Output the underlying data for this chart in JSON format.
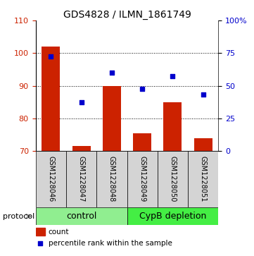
{
  "title": "GDS4828 / ILMN_1861749",
  "samples": [
    "GSM1228046",
    "GSM1228047",
    "GSM1228048",
    "GSM1228049",
    "GSM1228050",
    "GSM1228051"
  ],
  "bar_values": [
    102.0,
    71.5,
    90.0,
    75.5,
    85.0,
    74.0
  ],
  "percentile_values": [
    72.5,
    37.5,
    60.0,
    47.5,
    57.5,
    43.5
  ],
  "bar_color": "#cc2200",
  "dot_color": "#0000cc",
  "ylim_left": [
    70,
    110
  ],
  "ylim_right": [
    0,
    100
  ],
  "yticks_left": [
    70,
    80,
    90,
    100,
    110
  ],
  "yticks_right": [
    0,
    25,
    50,
    75,
    100
  ],
  "yticklabels_right": [
    "0",
    "25",
    "50",
    "75",
    "100%"
  ],
  "groups": [
    {
      "label": "control",
      "start": 0,
      "end": 3,
      "color": "#90ee90"
    },
    {
      "label": "CypB depletion",
      "start": 3,
      "end": 6,
      "color": "#44ee44"
    }
  ],
  "protocol_label": "protocol",
  "legend_count_label": "count",
  "legend_pct_label": "percentile rank within the sample",
  "title_fontsize": 10,
  "tick_fontsize": 8,
  "sample_fontsize": 7,
  "group_fontsize": 9,
  "legend_fontsize": 7.5
}
